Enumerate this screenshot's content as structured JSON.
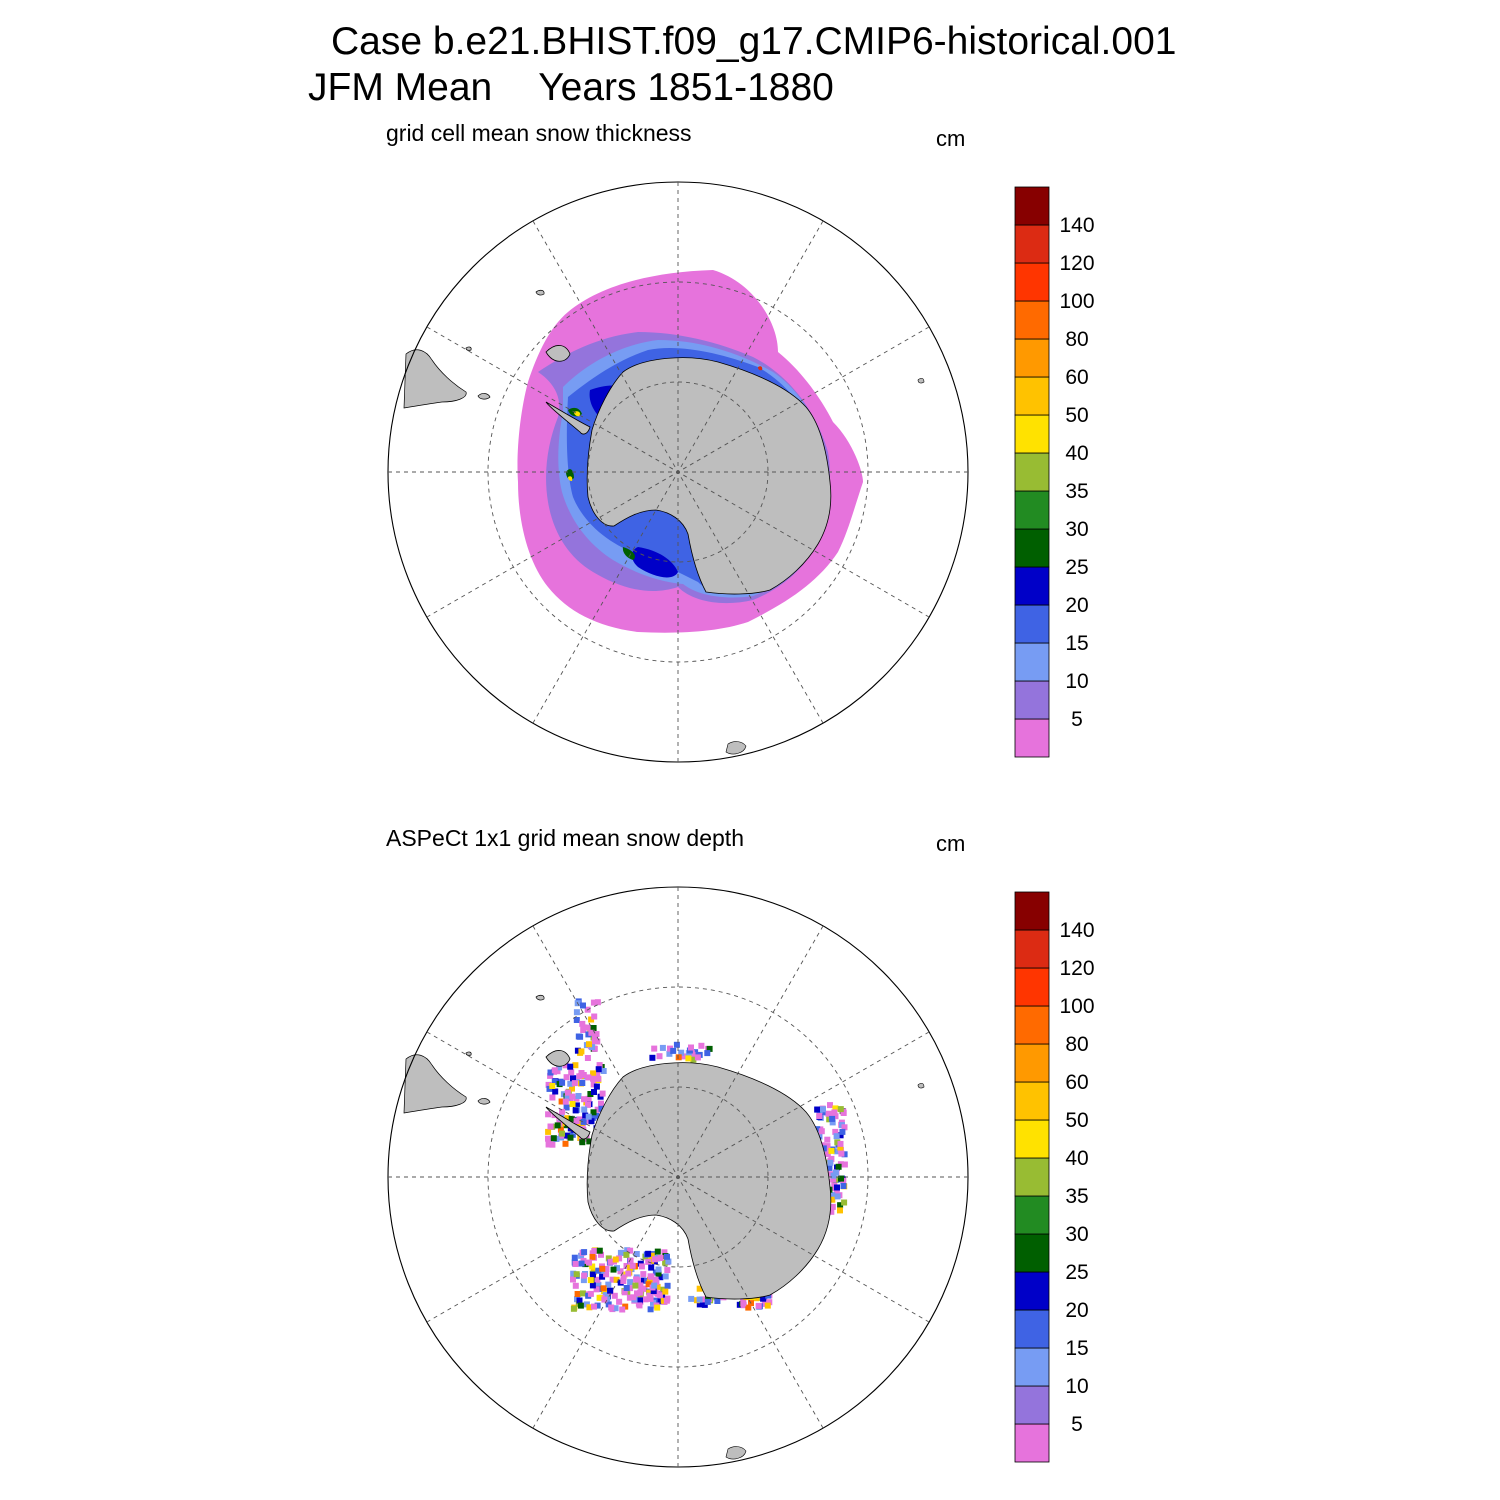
{
  "header": {
    "case_line": "Case b.e21.BHIST.f09_g17.CMIP6-historical.001",
    "season": "JFM Mean",
    "years": "Years 1851-1880"
  },
  "colors": {
    "land": "#bebebe",
    "levels": [
      "#e673dc",
      "#9474dc",
      "#779cf3",
      "#3f63e4",
      "#0000c8",
      "#005f00",
      "#228b22",
      "#98bc33",
      "#ffe200",
      "#ffc200",
      "#ff9900",
      "#ff6a00",
      "#ff3500",
      "#dc2b13",
      "#870000"
    ]
  },
  "colorbar": {
    "labels": [
      "5",
      "10",
      "15",
      "20",
      "25",
      "30",
      "35",
      "40",
      "50",
      "60",
      "80",
      "100",
      "120",
      "140"
    ]
  },
  "panels": [
    {
      "title": "grid cell mean snow thickness",
      "unit": "cm"
    },
    {
      "title": "ASPeCt 1x1 grid mean snow depth",
      "unit": "cm"
    }
  ]
}
